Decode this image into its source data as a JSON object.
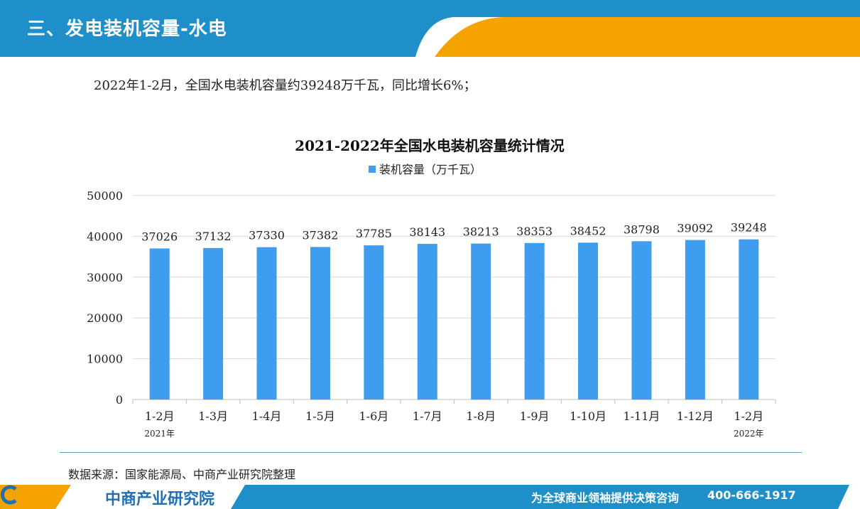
{
  "header": {
    "title": "三、发电装机容量-水电"
  },
  "summary": "2022年1-2月，全国水电装机容量约39248万千瓦，同比增长6%；",
  "chart_data": {
    "type": "bar",
    "title": "2021-2022年全国水电装机容量统计情况",
    "legend": {
      "label": "装机容量（万千瓦）",
      "position": "top"
    },
    "categories": [
      "1-2月",
      "1-3月",
      "1-4月",
      "1-5月",
      "1-6月",
      "1-7月",
      "1-8月",
      "1-9月",
      "1-10月",
      "1-11月",
      "1-12月",
      "1-2月"
    ],
    "year_labels": [
      {
        "index": 0,
        "label": "2021年"
      },
      {
        "index": 11,
        "label": "2022年"
      }
    ],
    "series": [
      {
        "name": "装机容量（万千瓦）",
        "values": [
          37026,
          37132,
          37330,
          37382,
          37785,
          38143,
          38213,
          38353,
          38452,
          38798,
          39092,
          39248
        ]
      }
    ],
    "ylim": [
      0,
      50000
    ],
    "yticks": [
      0,
      10000,
      20000,
      30000,
      40000,
      50000
    ],
    "grid": true,
    "colors": {
      "bar": "#3f9df0"
    }
  },
  "source": "数据来源：国家能源局、中商产业研究院整理",
  "footer": {
    "brand": "中商产业研究院",
    "slogan": "为全球商业领袖提供决策咨询",
    "phone": "400-666-1917"
  },
  "colors": {
    "header_blue": "#1e8fc9",
    "accent_orange": "#f5a300",
    "footer_blue": "#1e8fc9"
  }
}
